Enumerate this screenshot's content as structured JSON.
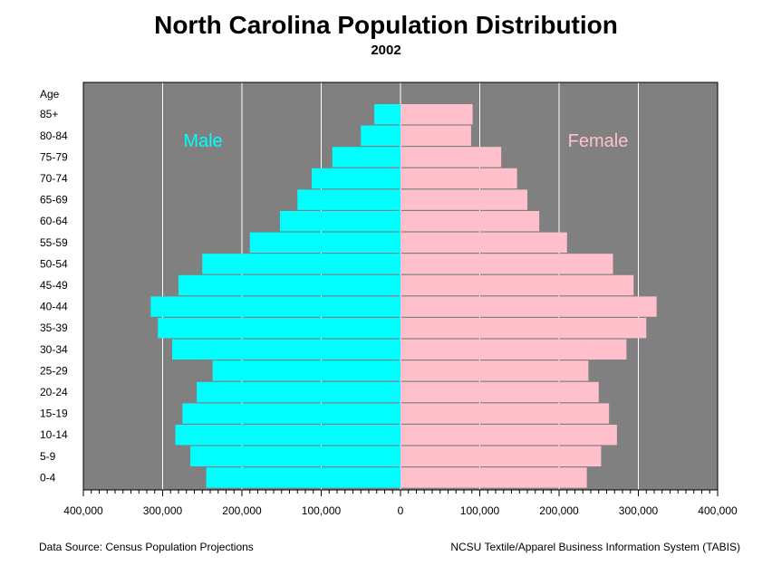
{
  "chart_data": {
    "type": "bar",
    "title": "North Carolina Population Distribution",
    "subtitle": "2002",
    "ylabel": "Age",
    "categories": [
      "85+",
      "80-84",
      "75-79",
      "70-74",
      "65-69",
      "60-64",
      "55-59",
      "50-54",
      "45-49",
      "40-44",
      "35-39",
      "30-34",
      "25-29",
      "20-24",
      "15-19",
      "10-14",
      "5-9",
      "0-4"
    ],
    "series": [
      {
        "name": "Male",
        "color": "#00ffff",
        "values": [
          33000,
          50000,
          86000,
          112000,
          130000,
          152000,
          190000,
          250000,
          280000,
          315000,
          306000,
          288000,
          237000,
          257000,
          275000,
          284000,
          265000,
          245000
        ]
      },
      {
        "name": "Female",
        "color": "#ffc0cb",
        "values": [
          91000,
          89000,
          127000,
          147000,
          160000,
          175000,
          210000,
          268000,
          294000,
          323000,
          310000,
          285000,
          237000,
          250000,
          263000,
          273000,
          253000,
          235000
        ]
      }
    ],
    "xlim": [
      -400000,
      400000
    ],
    "xticks": [
      -400000,
      -300000,
      -200000,
      -100000,
      0,
      100000,
      200000,
      300000,
      400000
    ],
    "xtick_labels": [
      "400,000",
      "300,000",
      "200,000",
      "100,000",
      "0",
      "100,000",
      "200,000",
      "300,000",
      "400,000"
    ],
    "grid": true,
    "background_color": "#808080"
  },
  "footer": {
    "source": "Data Source: Census Population Projections",
    "credit": "NCSU Textile/Apparel Business Information System (TABIS)"
  }
}
